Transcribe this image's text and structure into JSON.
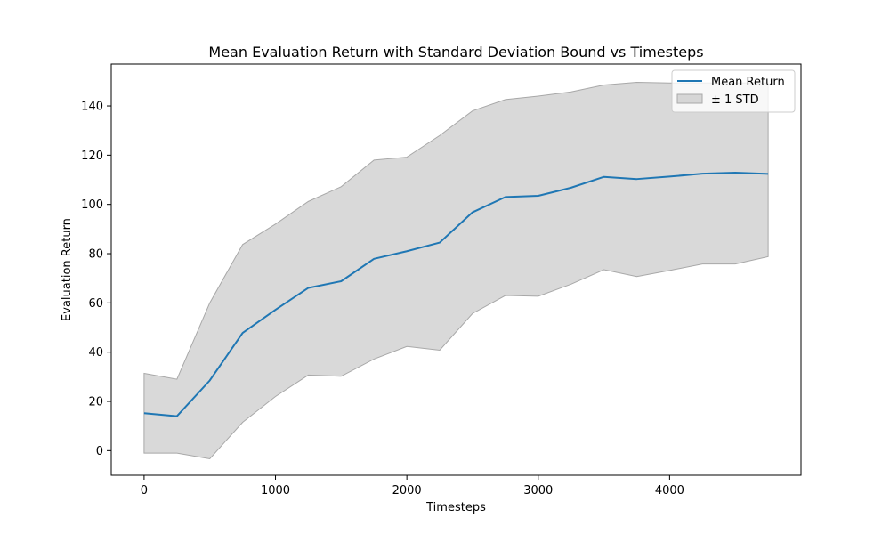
{
  "chart_data": {
    "type": "line",
    "title": "Mean Evaluation Return with Standard Deviation Bound vs Timesteps",
    "xlabel": "Timesteps",
    "ylabel": "Evaluation Return",
    "xlim": [
      -250,
      5000
    ],
    "ylim": [
      -10,
      157
    ],
    "x_ticks": [
      0,
      1000,
      2000,
      3000,
      4000
    ],
    "y_ticks": [
      0,
      20,
      40,
      60,
      80,
      100,
      120,
      140
    ],
    "grid": false,
    "legend_position": "top-right",
    "x": [
      0,
      250,
      500,
      750,
      1000,
      1250,
      1500,
      1750,
      2000,
      2250,
      2500,
      2750,
      3000,
      3250,
      3500,
      3750,
      4000,
      4250,
      4500,
      4750
    ],
    "series": [
      {
        "name": "Mean Return",
        "color": "#1f77b4",
        "values": [
          15.2,
          14.0,
          28.5,
          47.8,
          57.2,
          66.1,
          68.8,
          77.9,
          81.0,
          84.5,
          96.8,
          103.0,
          103.5,
          106.8,
          111.2,
          110.3,
          111.3,
          112.5,
          112.9,
          112.4
        ]
      }
    ],
    "band": {
      "name": "± 1 STD",
      "color": "#bfbfbf",
      "upper": [
        31.4,
        29.0,
        60.0,
        83.7,
        92.0,
        101.2,
        107.2,
        118.0,
        119.2,
        128.0,
        138.0,
        142.6,
        144.0,
        145.7,
        148.5,
        149.6,
        149.3,
        149.3,
        149.3,
        149.3
      ],
      "lower": [
        -1.0,
        -1.0,
        -3.3,
        11.5,
        22.0,
        30.7,
        30.2,
        37.2,
        42.3,
        40.8,
        55.7,
        63.0,
        62.7,
        67.6,
        73.5,
        70.7,
        73.2,
        75.8,
        75.8,
        78.8
      ]
    }
  }
}
